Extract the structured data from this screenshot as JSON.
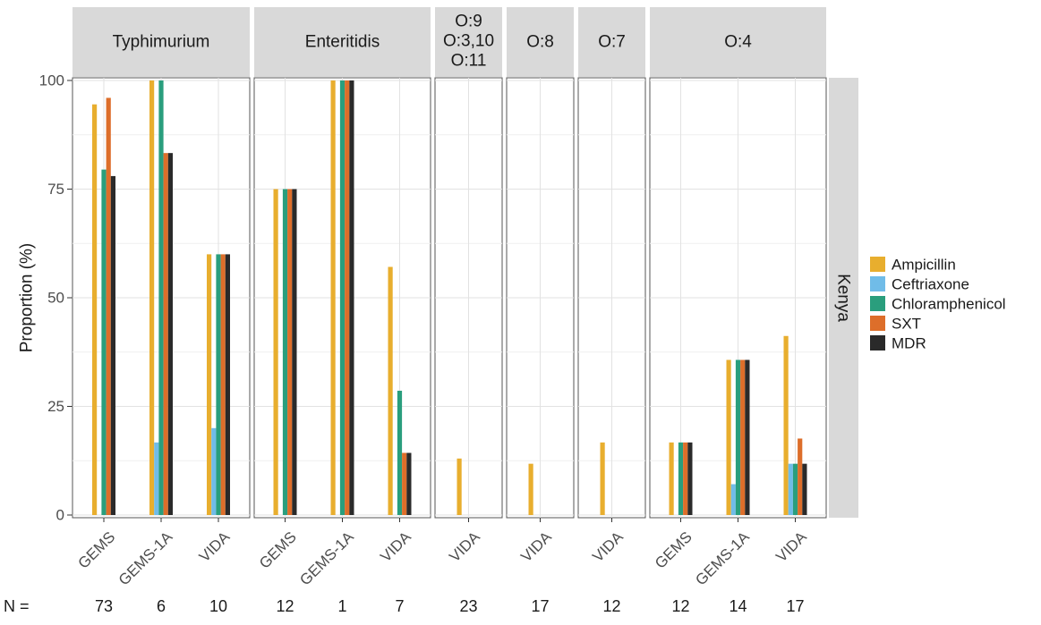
{
  "chart_data": {
    "type": "bar",
    "ylabel": "Proportion (%)",
    "xlabel": "",
    "ylim": [
      0,
      100
    ],
    "yticks": [
      "0",
      "25",
      "50",
      "75",
      "100"
    ],
    "row_strip": "Kenya",
    "n_prefix": "N =",
    "legend_position": "right",
    "series": [
      {
        "name": "Ampicillin",
        "color": "#E8AE2E"
      },
      {
        "name": "Ceftriaxone",
        "color": "#70BCE8"
      },
      {
        "name": "Chloramphenicol",
        "color": "#2A9E7D"
      },
      {
        "name": "SXT",
        "color": "#DD6E2A"
      },
      {
        "name": "MDR",
        "color": "#2A2A2A"
      }
    ],
    "panels": [
      {
        "strip": [
          "Typhimurium"
        ],
        "groups": [
          {
            "label": "GEMS",
            "n": "73",
            "values": [
              94.5,
              0,
              79.5,
              96,
              78
            ]
          },
          {
            "label": "GEMS-1A",
            "n": "6",
            "values": [
              100,
              16.7,
              100,
              83.3,
              83.3
            ]
          },
          {
            "label": "VIDA",
            "n": "10",
            "values": [
              60,
              20,
              60,
              60,
              60
            ]
          }
        ]
      },
      {
        "strip": [
          "Enteritidis"
        ],
        "groups": [
          {
            "label": "GEMS",
            "n": "12",
            "values": [
              75,
              0,
              75,
              75,
              75
            ]
          },
          {
            "label": "GEMS-1A",
            "n": "1",
            "values": [
              100,
              0,
              100,
              100,
              100
            ]
          },
          {
            "label": "VIDA",
            "n": "7",
            "values": [
              57.1,
              0,
              28.6,
              14.3,
              14.3
            ]
          }
        ]
      },
      {
        "strip": [
          "O:9",
          "O:3,10",
          "O:11"
        ],
        "groups": [
          {
            "label": "VIDA",
            "n": "23",
            "values": [
              13,
              0,
              0,
              0,
              0
            ]
          }
        ]
      },
      {
        "strip": [
          "O:8"
        ],
        "groups": [
          {
            "label": "VIDA",
            "n": "17",
            "values": [
              11.8,
              0,
              0,
              0,
              0
            ]
          }
        ]
      },
      {
        "strip": [
          "O:7"
        ],
        "groups": [
          {
            "label": "VIDA",
            "n": "12",
            "values": [
              16.7,
              0,
              0,
              0,
              0
            ]
          }
        ]
      },
      {
        "strip": [
          "O:4"
        ],
        "groups": [
          {
            "label": "GEMS",
            "n": "12",
            "values": [
              16.7,
              0,
              16.7,
              16.7,
              16.7
            ]
          },
          {
            "label": "GEMS-1A",
            "n": "14",
            "values": [
              35.7,
              7.1,
              35.7,
              35.7,
              35.7
            ]
          },
          {
            "label": "VIDA",
            "n": "17",
            "values": [
              41.2,
              11.8,
              11.8,
              17.6,
              11.8
            ]
          }
        ]
      }
    ]
  }
}
